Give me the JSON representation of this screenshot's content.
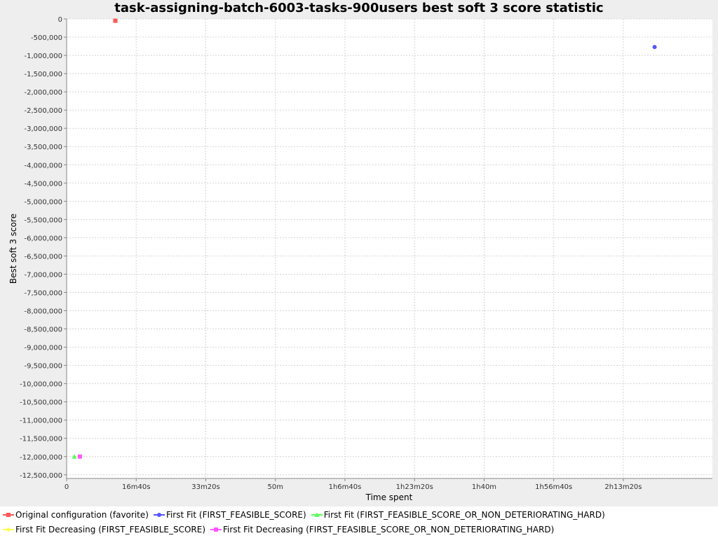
{
  "chart_data": {
    "type": "scatter",
    "title": "task-assigning-batch-6003-tasks-900users best soft 3 score statistic",
    "xlabel": "Time spent",
    "ylabel": "Best soft 3 score",
    "xlim": [
      0,
      9280
    ],
    "ylim": [
      -12600000,
      0
    ],
    "x_ticks": [
      {
        "value": 0,
        "label": "0"
      },
      {
        "value": 1000,
        "label": "16m40s"
      },
      {
        "value": 2000,
        "label": "33m20s"
      },
      {
        "value": 3000,
        "label": "50m"
      },
      {
        "value": 4000,
        "label": "1h6m40s"
      },
      {
        "value": 5000,
        "label": "1h23m20s"
      },
      {
        "value": 6000,
        "label": "1h40m"
      },
      {
        "value": 7000,
        "label": "1h56m40s"
      },
      {
        "value": 8000,
        "label": "2h13m20s"
      }
    ],
    "y_ticks": [
      {
        "value": 0,
        "label": "0"
      },
      {
        "value": -500000,
        "label": "-500,000"
      },
      {
        "value": -1000000,
        "label": "-1,000,000"
      },
      {
        "value": -1500000,
        "label": "-1,500,000"
      },
      {
        "value": -2000000,
        "label": "-2,000,000"
      },
      {
        "value": -2500000,
        "label": "-2,500,000"
      },
      {
        "value": -3000000,
        "label": "-3,000,000"
      },
      {
        "value": -3500000,
        "label": "-3,500,000"
      },
      {
        "value": -4000000,
        "label": "-4,000,000"
      },
      {
        "value": -4500000,
        "label": "-4,500,000"
      },
      {
        "value": -5000000,
        "label": "-5,000,000"
      },
      {
        "value": -5500000,
        "label": "-5,500,000"
      },
      {
        "value": -6000000,
        "label": "-6,000,000"
      },
      {
        "value": -6500000,
        "label": "-6,500,000"
      },
      {
        "value": -7000000,
        "label": "-7,000,000"
      },
      {
        "value": -7500000,
        "label": "-7,500,000"
      },
      {
        "value": -8000000,
        "label": "-8,000,000"
      },
      {
        "value": -8500000,
        "label": "-8,500,000"
      },
      {
        "value": -9000000,
        "label": "-9,000,000"
      },
      {
        "value": -9500000,
        "label": "-9,500,000"
      },
      {
        "value": -10000000,
        "label": "-10,000,000"
      },
      {
        "value": -10500000,
        "label": "-10,500,000"
      },
      {
        "value": -11000000,
        "label": "-11,000,000"
      },
      {
        "value": -11500000,
        "label": "-11,500,000"
      },
      {
        "value": -12000000,
        "label": "-12,000,000"
      },
      {
        "value": -12500000,
        "label": "-12,500,000"
      }
    ],
    "grid": true,
    "legend_position": "bottom",
    "series": [
      {
        "name": "Original configuration (favorite)",
        "color": "#ff5555",
        "marker": "square",
        "points": [
          [
            700,
            -50000
          ]
        ]
      },
      {
        "name": "First Fit (FIRST_FEASIBLE_SCORE)",
        "color": "#5555ff",
        "marker": "circle",
        "points": [
          [
            8450,
            -770000
          ]
        ]
      },
      {
        "name": "First Fit (FIRST_FEASIBLE_SCORE_OR_NON_DETERIORATING_HARD)",
        "color": "#55ff55",
        "marker": "triangle",
        "points": [
          [
            110,
            -12000000
          ]
        ]
      },
      {
        "name": "First Fit Decreasing (FIRST_FEASIBLE_SCORE)",
        "color": "#ffff55",
        "marker": "diamond",
        "points": [
          [
            180,
            -12000000
          ]
        ]
      },
      {
        "name": "First Fit Decreasing (FIRST_FEASIBLE_SCORE_OR_NON_DETERIORATING_HARD)",
        "color": "#ff55ff",
        "marker": "square",
        "points": [
          [
            190,
            -12000000
          ]
        ]
      }
    ]
  }
}
